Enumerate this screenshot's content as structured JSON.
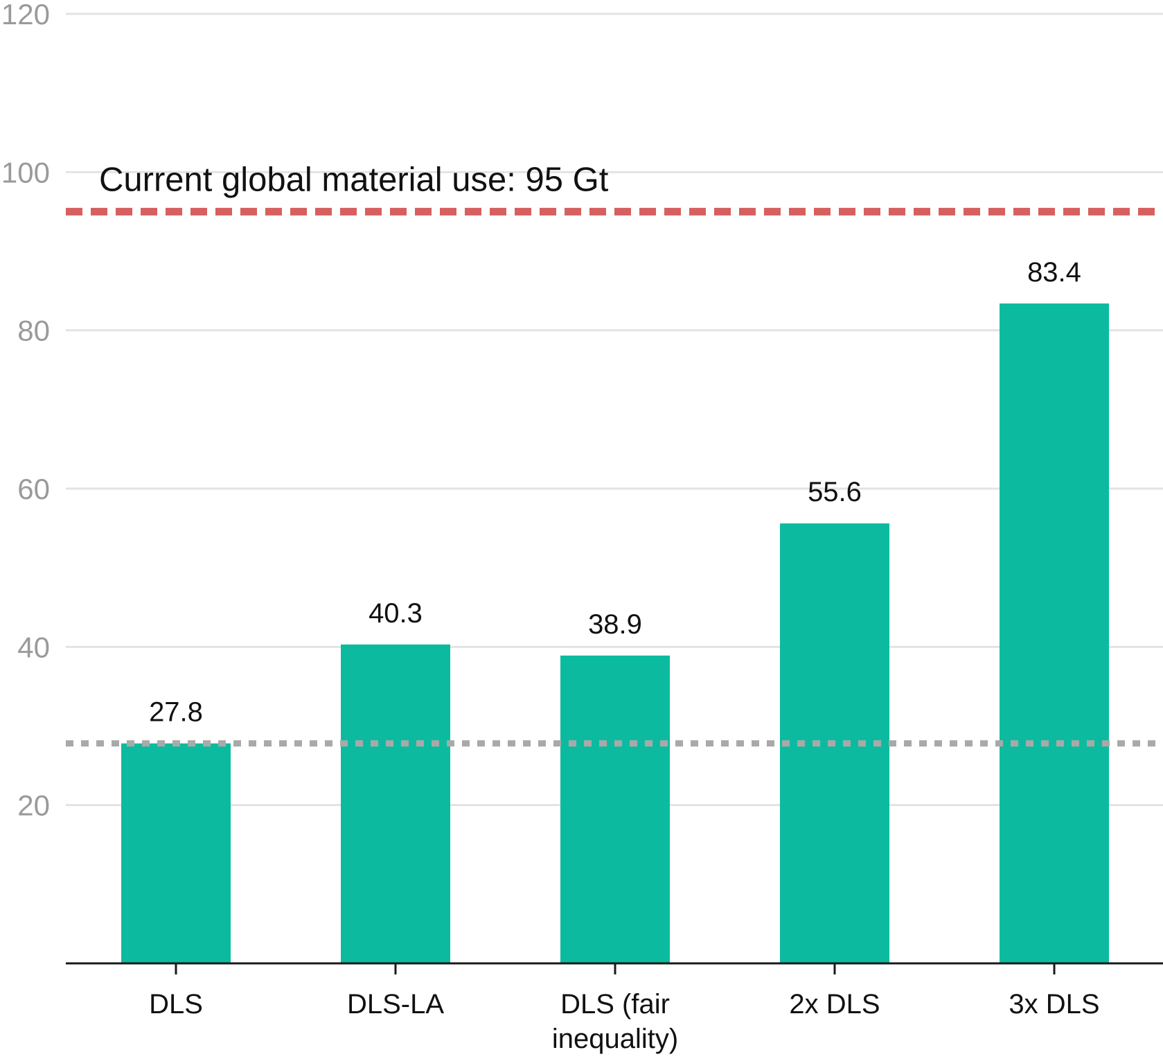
{
  "chart_data": {
    "type": "bar",
    "categories": [
      [
        "DLS"
      ],
      [
        "DLS-LA"
      ],
      [
        "DLS (fair",
        "inequality)"
      ],
      [
        "2x DLS"
      ],
      [
        "3x DLS"
      ]
    ],
    "values": [
      27.8,
      40.3,
      38.9,
      55.6,
      83.4
    ],
    "value_labels": [
      "27.8",
      "40.3",
      "38.9",
      "55.6",
      "83.4"
    ],
    "yticks": [
      20,
      40,
      60,
      80,
      100,
      120
    ],
    "ylim": [
      0,
      120
    ],
    "grid": true,
    "reference_lines": [
      {
        "value": 95,
        "label": "Current global material use: 95 Gt",
        "style": "dashed",
        "color": "#d65f5f"
      },
      {
        "value": 27.8,
        "label": "",
        "style": "dotted",
        "color": "#a9a9a9"
      }
    ],
    "colors": {
      "bar": "#0cbb9f",
      "axis": "#1a1a1a",
      "grid": "#e3e3e3",
      "tick_text": "#9a9a9a"
    },
    "title": "",
    "xlabel": "",
    "ylabel": ""
  }
}
